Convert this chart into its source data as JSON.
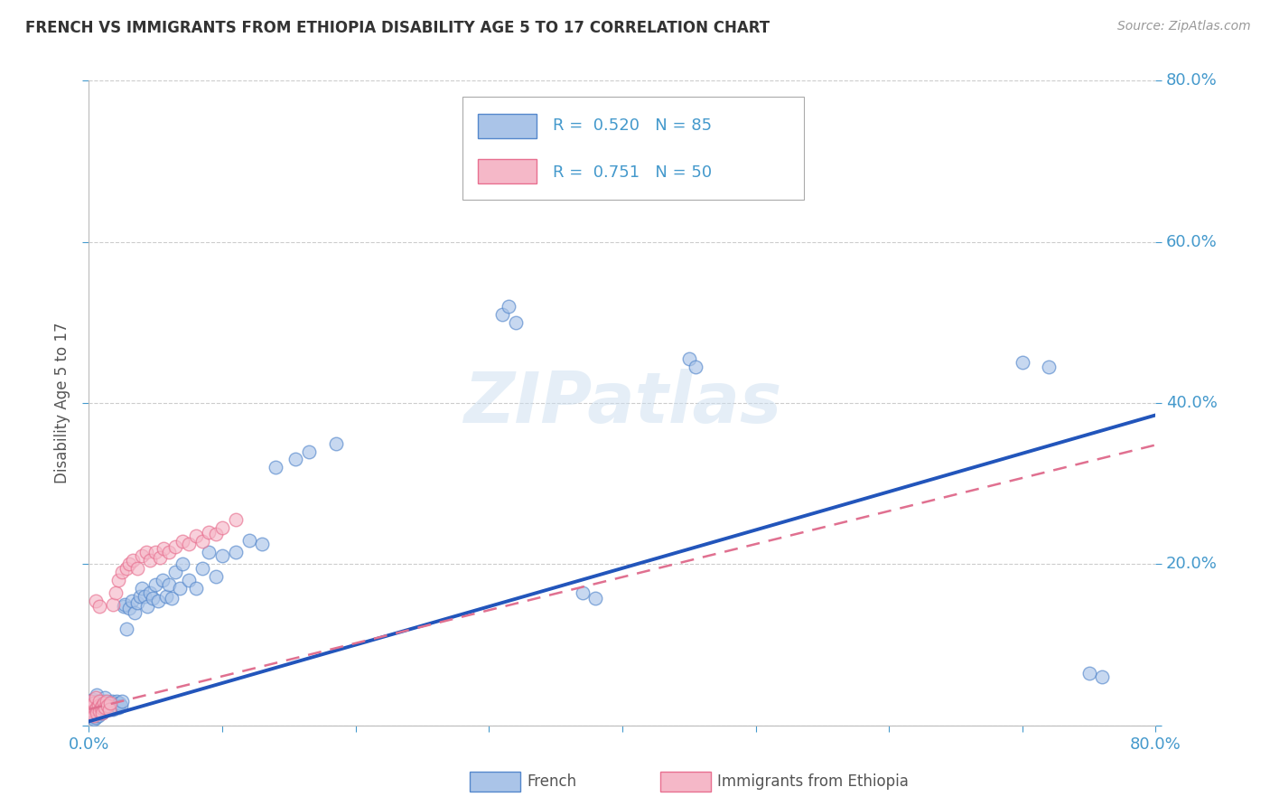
{
  "title": "FRENCH VS IMMIGRANTS FROM ETHIOPIA DISABILITY AGE 5 TO 17 CORRELATION CHART",
  "source": "Source: ZipAtlas.com",
  "ylabel": "Disability Age 5 to 17",
  "xlim": [
    0.0,
    0.8
  ],
  "ylim": [
    0.0,
    0.8
  ],
  "background_color": "#ffffff",
  "grid_color": "#cccccc",
  "watermark": "ZIPatlas",
  "legend_french_r": "0.520",
  "legend_french_n": "85",
  "legend_ethiopia_r": "0.751",
  "legend_ethiopia_n": "50",
  "french_color": "#aac4e8",
  "french_edge_color": "#5588cc",
  "ethiopia_color": "#f5b8c8",
  "ethiopia_edge_color": "#e87090",
  "french_line_color": "#2255bb",
  "ethiopia_line_color": "#e07090",
  "french_slope": 0.475,
  "french_intercept": 0.005,
  "ethiopia_slope": 0.41,
  "ethiopia_intercept": 0.02,
  "tick_color": "#4499cc",
  "french_scatter_x": [
    0.001,
    0.001,
    0.001,
    0.002,
    0.002,
    0.002,
    0.003,
    0.003,
    0.003,
    0.004,
    0.004,
    0.005,
    0.005,
    0.005,
    0.006,
    0.006,
    0.007,
    0.007,
    0.008,
    0.008,
    0.009,
    0.01,
    0.01,
    0.011,
    0.012,
    0.012,
    0.013,
    0.014,
    0.015,
    0.016,
    0.017,
    0.018,
    0.019,
    0.02,
    0.021,
    0.022,
    0.023,
    0.024,
    0.025,
    0.026,
    0.027,
    0.028,
    0.03,
    0.032,
    0.034,
    0.036,
    0.038,
    0.04,
    0.042,
    0.044,
    0.046,
    0.048,
    0.05,
    0.052,
    0.055,
    0.058,
    0.06,
    0.062,
    0.065,
    0.068,
    0.07,
    0.075,
    0.08,
    0.085,
    0.09,
    0.095,
    0.1,
    0.11,
    0.12,
    0.13,
    0.14,
    0.155,
    0.165,
    0.185,
    0.31,
    0.315,
    0.32,
    0.45,
    0.455,
    0.7,
    0.72,
    0.75,
    0.76,
    0.37,
    0.38
  ],
  "french_scatter_y": [
    0.03,
    0.015,
    0.025,
    0.02,
    0.028,
    0.012,
    0.018,
    0.032,
    0.01,
    0.025,
    0.008,
    0.022,
    0.03,
    0.01,
    0.018,
    0.038,
    0.025,
    0.012,
    0.028,
    0.015,
    0.02,
    0.025,
    0.015,
    0.03,
    0.022,
    0.035,
    0.02,
    0.028,
    0.025,
    0.022,
    0.03,
    0.02,
    0.028,
    0.025,
    0.03,
    0.022,
    0.028,
    0.025,
    0.03,
    0.148,
    0.15,
    0.12,
    0.145,
    0.155,
    0.14,
    0.152,
    0.16,
    0.17,
    0.16,
    0.148,
    0.165,
    0.158,
    0.175,
    0.155,
    0.18,
    0.16,
    0.175,
    0.158,
    0.19,
    0.17,
    0.2,
    0.18,
    0.17,
    0.195,
    0.215,
    0.185,
    0.21,
    0.215,
    0.23,
    0.225,
    0.32,
    0.33,
    0.34,
    0.35,
    0.51,
    0.52,
    0.5,
    0.455,
    0.445,
    0.45,
    0.445,
    0.065,
    0.06,
    0.165,
    0.158
  ],
  "ethiopia_scatter_x": [
    0.001,
    0.001,
    0.002,
    0.002,
    0.003,
    0.003,
    0.004,
    0.004,
    0.005,
    0.005,
    0.006,
    0.006,
    0.007,
    0.008,
    0.008,
    0.009,
    0.01,
    0.01,
    0.011,
    0.012,
    0.013,
    0.014,
    0.015,
    0.016,
    0.018,
    0.02,
    0.022,
    0.025,
    0.028,
    0.03,
    0.033,
    0.036,
    0.04,
    0.043,
    0.046,
    0.05,
    0.053,
    0.056,
    0.06,
    0.065,
    0.07,
    0.075,
    0.08,
    0.085,
    0.09,
    0.095,
    0.1,
    0.11,
    0.005,
    0.008
  ],
  "ethiopia_scatter_y": [
    0.02,
    0.03,
    0.022,
    0.015,
    0.025,
    0.018,
    0.028,
    0.012,
    0.02,
    0.035,
    0.022,
    0.015,
    0.025,
    0.03,
    0.018,
    0.022,
    0.025,
    0.015,
    0.028,
    0.022,
    0.03,
    0.025,
    0.02,
    0.028,
    0.15,
    0.165,
    0.18,
    0.19,
    0.195,
    0.2,
    0.205,
    0.195,
    0.21,
    0.215,
    0.205,
    0.215,
    0.208,
    0.22,
    0.215,
    0.222,
    0.228,
    0.225,
    0.235,
    0.228,
    0.24,
    0.238,
    0.245,
    0.255,
    0.155,
    0.148
  ]
}
